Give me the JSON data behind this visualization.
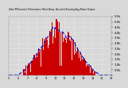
{
  "title": "Solar PV/Inverter Performance West Array  Actual & Running Avg Power Output",
  "bg_color": "#d8d8d8",
  "plot_bg": "#d8d8d8",
  "grid_color": "#ffffff",
  "bar_color": "#cc0000",
  "line_color": "#0000cc",
  "n_bars": 144,
  "ylim": [
    0,
    5500
  ],
  "ytick_vals": [
    0,
    500,
    1000,
    1500,
    2000,
    2500,
    3000,
    3500,
    4000,
    4500,
    5000,
    5500
  ],
  "ytick_labels": [
    "",
    "0.5k",
    "1.0k",
    "1.5k",
    "2.0k",
    "2.5k",
    "3.0k",
    "3.5k",
    "4.0k",
    "4.5k",
    "5.0k",
    "5.5k"
  ]
}
